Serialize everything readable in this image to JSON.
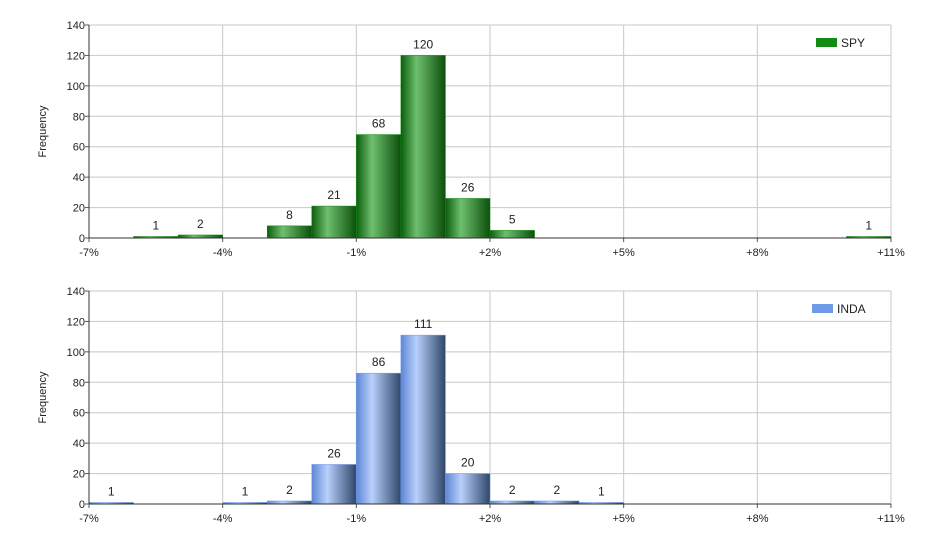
{
  "chart_data": [
    {
      "type": "bar",
      "ylabel": "Frequency",
      "ylim": [
        0,
        140
      ],
      "yticks": [
        0,
        20,
        40,
        60,
        80,
        100,
        120,
        140
      ],
      "xlim": [
        -7,
        11
      ],
      "xticks": [
        -7,
        -4,
        -1,
        2,
        5,
        8,
        11
      ],
      "xtick_labels": [
        "-7%",
        "-4%",
        "-1%",
        "+2%",
        "+5%",
        "+8%",
        "+11%"
      ],
      "bin_width": 1,
      "grid": true,
      "legend": "top-right",
      "series": [
        {
          "name": "SPY",
          "color": "#138a13",
          "bins": [
            {
              "start": -6,
              "value": 1
            },
            {
              "start": -5,
              "value": 2
            },
            {
              "start": -3,
              "value": 8
            },
            {
              "start": -2,
              "value": 21
            },
            {
              "start": -1,
              "value": 68
            },
            {
              "start": 0,
              "value": 120
            },
            {
              "start": 1,
              "value": 26
            },
            {
              "start": 2,
              "value": 5
            },
            {
              "start": 10,
              "value": 1
            }
          ]
        }
      ]
    },
    {
      "type": "bar",
      "ylabel": "Frequency",
      "ylim": [
        0,
        140
      ],
      "yticks": [
        0,
        20,
        40,
        60,
        80,
        100,
        120,
        140
      ],
      "xlim": [
        -7,
        11
      ],
      "xticks": [
        -7,
        -4,
        -1,
        2,
        5,
        8,
        11
      ],
      "xtick_labels": [
        "-7%",
        "-4%",
        "-1%",
        "+2%",
        "+5%",
        "+8%",
        "+11%"
      ],
      "bin_width": 1,
      "grid": true,
      "legend": "top-right",
      "series": [
        {
          "name": "INDA",
          "color": "#6f9ae8",
          "bins": [
            {
              "start": -7,
              "value": 1
            },
            {
              "start": -4,
              "value": 1
            },
            {
              "start": -3,
              "value": 2
            },
            {
              "start": -2,
              "value": 26
            },
            {
              "start": -1,
              "value": 86
            },
            {
              "start": 0,
              "value": 111
            },
            {
              "start": 1,
              "value": 20
            },
            {
              "start": 2,
              "value": 2
            },
            {
              "start": 3,
              "value": 2
            },
            {
              "start": 4,
              "value": 1
            }
          ]
        }
      ]
    }
  ]
}
